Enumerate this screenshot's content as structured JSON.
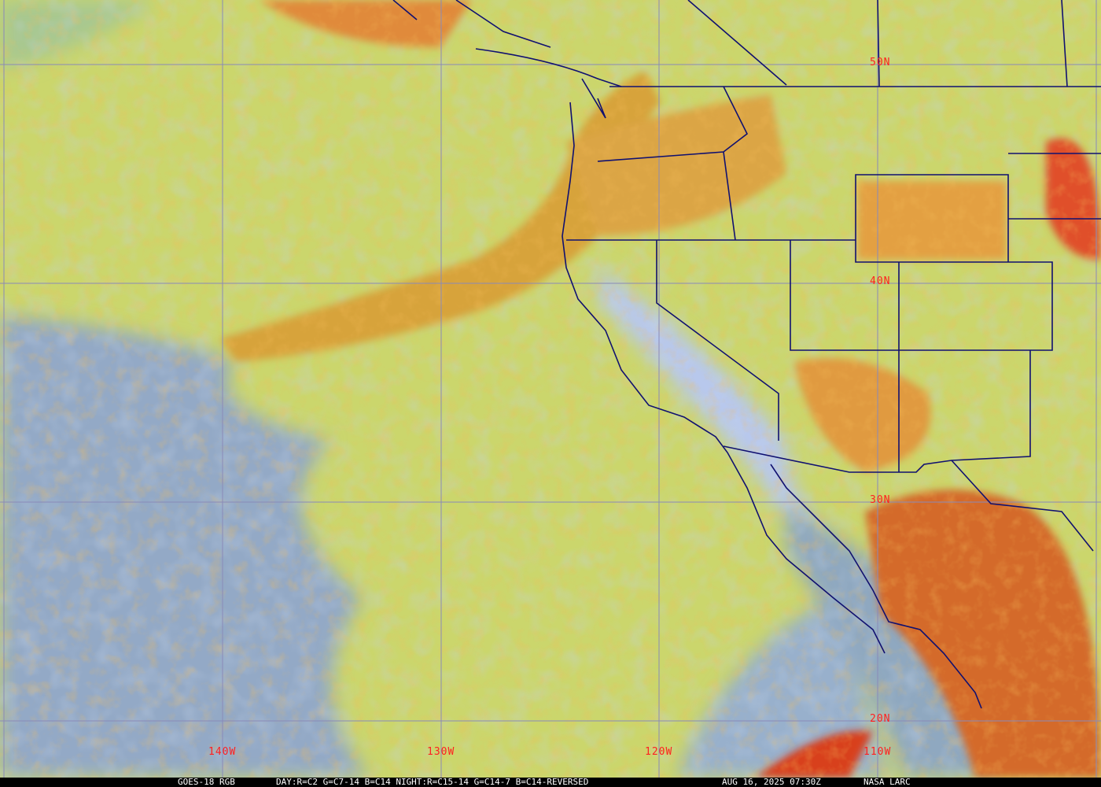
{
  "map": {
    "type": "satellite-rgb-composite",
    "colors": {
      "clear_ocean": "#8fa6c8",
      "low_cloud": "#d3dc6a",
      "high_cloud": "#e08a2a",
      "deep_convection": "#d8401c",
      "boundaries": "#101070",
      "graticule": "#8a8ab8",
      "labels": "#ff2020"
    },
    "latitude_labels": [
      "50N",
      "40N",
      "30N",
      "20N"
    ],
    "longitude_labels": [
      "140W",
      "130W",
      "120W",
      "110W"
    ]
  },
  "caption": {
    "satellite": "GOES-18 RGB",
    "recipe": "DAY:R=C2 G=C7-14 B=C14 NIGHT:R=C15-14 G=C14-7 B=C14-REVERSED",
    "timestamp": "AUG 16, 2025 07:30Z",
    "source": "NASA LARC"
  }
}
